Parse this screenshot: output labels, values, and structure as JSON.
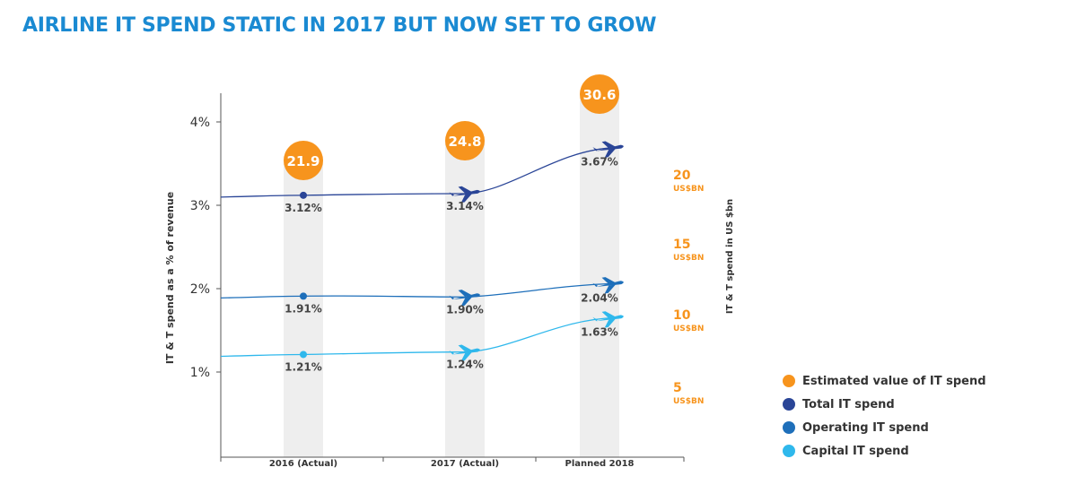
{
  "title": "AIRLINE IT SPEND STATIC IN 2017 BUT NOW SET TO GROW",
  "chart_data": {
    "type": "line",
    "categories": [
      "2016 (Actual)",
      "2017 (Actual)",
      "Planned 2018"
    ],
    "left_axis": {
      "label": "IT & T spend as a % of revenue",
      "ticks": [
        "1%",
        "2%",
        "3%",
        "4%"
      ],
      "ylim": [
        0,
        4.5
      ]
    },
    "right_axis": {
      "label": "IT & T spend in US $bn",
      "ticks": [
        {
          "value": "5",
          "unit": "US$BN"
        },
        {
          "value": "10",
          "unit": "US$BN"
        },
        {
          "value": "15",
          "unit": "US$BN"
        },
        {
          "value": "20",
          "unit": "US$BN"
        }
      ]
    },
    "series": [
      {
        "name": "Total IT spend",
        "values": [
          3.12,
          3.14,
          3.67
        ],
        "labels": [
          "3.12%",
          "3.14%",
          "3.67%"
        ],
        "color": "#2a4597"
      },
      {
        "name": "Operating IT spend",
        "values": [
          1.91,
          1.9,
          2.04
        ],
        "labels": [
          "1.91%",
          "1.90%",
          "2.04%"
        ],
        "color": "#1e6fba"
      },
      {
        "name": "Capital IT spend",
        "values": [
          1.21,
          1.24,
          1.63
        ],
        "labels": [
          "1.21%",
          "1.24%",
          "1.63%"
        ],
        "color": "#2fb8ec"
      }
    ],
    "estimated_value": {
      "name": "Estimated value of IT spend",
      "values": [
        21.9,
        24.8,
        30.6
      ],
      "labels": [
        "21.9",
        "24.8",
        "30.6"
      ],
      "color": "#f7941d"
    },
    "grid": false,
    "legend_position": "bottom-right"
  },
  "legend": [
    {
      "label": "Estimated value of IT spend",
      "color": "#f7941d"
    },
    {
      "label": "Total IT spend",
      "color": "#2a4597"
    },
    {
      "label": "Operating IT spend",
      "color": "#1e6fba"
    },
    {
      "label": "Capital IT spend",
      "color": "#2fb8ec"
    }
  ]
}
